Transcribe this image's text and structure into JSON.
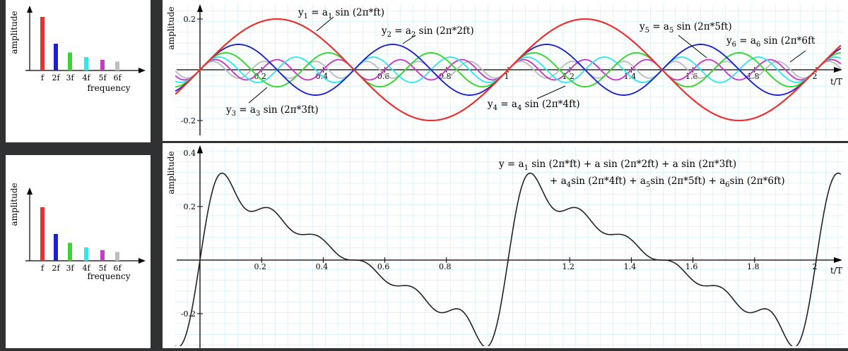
{
  "colors": {
    "background_frame": "#2f3133",
    "panel": "#ffffff",
    "grid": "#bfeaf5",
    "axis": "#000000",
    "y1": "#e8312e",
    "y2": "#1a22c8",
    "y3": "#36d62e",
    "y4": "#2ee8ee",
    "y5": "#c53ac8",
    "y6": "#bdbdbd",
    "sum": "#222222"
  },
  "spectrum_top": {
    "ylabel": "amplitude",
    "xlabel": "frequency",
    "tick_labels": [
      "f",
      "2f",
      "3f",
      "4f",
      "5f",
      "6f"
    ]
  },
  "spectrum_bottom": {
    "ylabel": "amplitude",
    "xlabel": "frequency",
    "tick_labels": [
      "f",
      "2f",
      "3f",
      "4f",
      "5f",
      "6f"
    ]
  },
  "top_plot": {
    "ylabel": "amplitude",
    "xlabel": "t/T",
    "y_tick_labels": [
      "0.2",
      "-0.2"
    ],
    "x_tick_labels": [
      "0.2",
      "0.4",
      "0.6",
      "0.8",
      "1",
      "1.2",
      "1.4",
      "1.6",
      "1.8",
      "2"
    ],
    "annotations": {
      "y1": {
        "name": "y",
        "sub": "1",
        "eq": "=",
        "a": "a",
        "asub": "1",
        "expr": "sin (2π*ft)"
      },
      "y2": {
        "name": "y",
        "sub": "2",
        "eq": "=",
        "a": "a",
        "asub": "2",
        "expr": "sin (2π*2ft)"
      },
      "y3": {
        "name": "y",
        "sub": "3",
        "eq": "=",
        "a": "a",
        "asub": "3",
        "expr": "sin (2π*3ft)"
      },
      "y4": {
        "name": "y",
        "sub": "4",
        "eq": "=",
        "a": "a",
        "asub": "4",
        "expr": "sin (2π*4ft)"
      },
      "y5": {
        "name": "y",
        "sub": "5",
        "eq": "=",
        "a": "a",
        "asub": "5",
        "expr": "sin (2π*5ft)"
      },
      "y6": {
        "name": "y",
        "sub": "6",
        "eq": "=",
        "a": "a",
        "asub": "6",
        "expr": "sin (2π*6ft"
      }
    }
  },
  "bottom_plot": {
    "ylabel": "amplitude",
    "xlabel": "t/T",
    "y_tick_labels": [
      "0.4",
      "0.2",
      "-0.2"
    ],
    "x_tick_labels": [
      "0.2",
      "0.4",
      "0.6",
      "0.8",
      "1.2",
      "1.4",
      "1.6",
      "1.8",
      "2"
    ],
    "formula_line1": {
      "p1": "y  =  a",
      "s1": "1",
      "p2": " sin (2π*ft) + a  sin (2π*2ft) + a  sin (2π*3ft)"
    },
    "formula_line2": {
      "p1": "+ a",
      "s1": "4",
      "p2": "sin (2π*4ft) + a",
      "s2": "5",
      "p3": "sin (2π*5ft) + a",
      "s3": "6",
      "p4": "sin (2π*6ft)"
    }
  },
  "chart_data": [
    {
      "type": "bar",
      "title": "",
      "xlabel": "frequency",
      "ylabel": "amplitude",
      "categories": [
        "f",
        "2f",
        "3f",
        "4f",
        "5f",
        "6f"
      ],
      "values": [
        0.2,
        0.1,
        0.067,
        0.05,
        0.04,
        0.033
      ],
      "bar_colors": [
        "#e8312e",
        "#1a22c8",
        "#36d62e",
        "#2ee8ee",
        "#c53ac8",
        "#bdbdbd"
      ]
    },
    {
      "type": "line",
      "title": "",
      "xlabel": "t/T",
      "ylabel": "amplitude",
      "xlim": [
        -0.08,
        2.08
      ],
      "ylim": [
        -0.24,
        0.24
      ],
      "grid": true,
      "sample_step": 0.005,
      "series": [
        {
          "name": "y1",
          "harmonic": 1,
          "amplitude": 0.2,
          "color": "#e8312e"
        },
        {
          "name": "y2",
          "harmonic": 2,
          "amplitude": 0.1,
          "color": "#1a22c8"
        },
        {
          "name": "y3",
          "harmonic": 3,
          "amplitude": 0.067,
          "color": "#36d62e"
        },
        {
          "name": "y4",
          "harmonic": 4,
          "amplitude": 0.05,
          "color": "#2ee8ee"
        },
        {
          "name": "y5",
          "harmonic": 5,
          "amplitude": 0.04,
          "color": "#c53ac8"
        },
        {
          "name": "y6",
          "harmonic": 6,
          "amplitude": 0.033,
          "color": "#bdbdbd"
        }
      ]
    },
    {
      "type": "bar",
      "title": "",
      "xlabel": "frequency",
      "ylabel": "amplitude",
      "categories": [
        "f",
        "2f",
        "3f",
        "4f",
        "5f",
        "6f"
      ],
      "values": [
        0.2,
        0.1,
        0.067,
        0.05,
        0.04,
        0.033
      ],
      "bar_colors": [
        "#e8312e",
        "#1a22c8",
        "#36d62e",
        "#2ee8ee",
        "#c53ac8",
        "#bdbdbd"
      ]
    },
    {
      "type": "line",
      "title": "",
      "xlabel": "t/T",
      "ylabel": "amplitude",
      "xlim": [
        -0.08,
        2.08
      ],
      "ylim": [
        -0.34,
        0.42
      ],
      "grid": true,
      "sample_step": 0.004,
      "series": [
        {
          "name": "y",
          "harmonics": [
            1,
            2,
            3,
            4,
            5,
            6
          ],
          "amplitudes": [
            0.2,
            0.1,
            0.067,
            0.05,
            0.04,
            0.033
          ],
          "color": "#222222"
        }
      ]
    }
  ]
}
